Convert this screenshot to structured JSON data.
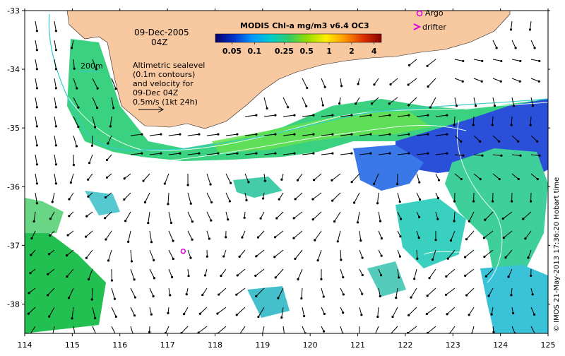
{
  "map": {
    "date": "09-Dec-2005",
    "time": "04Z",
    "colorbar_title": "MODIS Chl-a mg/m3 v6.4 OC3",
    "colorbar_ticks": [
      "0.05",
      "0.1",
      "0.25",
      "0.5",
      "1",
      "2",
      "4"
    ],
    "colorbar_tick_values": [
      0.05,
      0.1,
      0.25,
      0.5,
      1,
      2,
      4
    ],
    "colorbar_range": [
      0.03,
      5
    ],
    "colorbar_colors": [
      "#08006a",
      "#0033cc",
      "#0099ff",
      "#00cccc",
      "#33cc66",
      "#99dd00",
      "#ffee00",
      "#ff9900",
      "#dd3300",
      "#880000"
    ],
    "isobath_label": "200m",
    "sealevel_note": [
      "Altimetric sealevel",
      "(0.1m contours)",
      "and velocity for",
      "09-Dec 04Z",
      "0.5m/s (1kt 24h)"
    ],
    "legend_argo": "Argo",
    "legend_drifter": "drifter",
    "credit": "© IMOS 21-May-2013 17:36:20 Hobart time",
    "x_ticks": [
      "114",
      "115",
      "116",
      "117",
      "118",
      "119",
      "120",
      "121",
      "122",
      "123",
      "124",
      "125"
    ],
    "y_ticks": [
      "-33",
      "-34",
      "-35",
      "-36",
      "-37",
      "-38"
    ],
    "lon_range": [
      114,
      125
    ],
    "lat_range": [
      -38.5,
      -33
    ],
    "argo_float": {
      "lon": 117.33,
      "lat": -37.1
    },
    "colors": {
      "land": "#f8c8a0",
      "isobath": "#33cccc",
      "argo": "#dd00dd",
      "drifter": "#dd00dd",
      "arrow": "#000000"
    }
  }
}
